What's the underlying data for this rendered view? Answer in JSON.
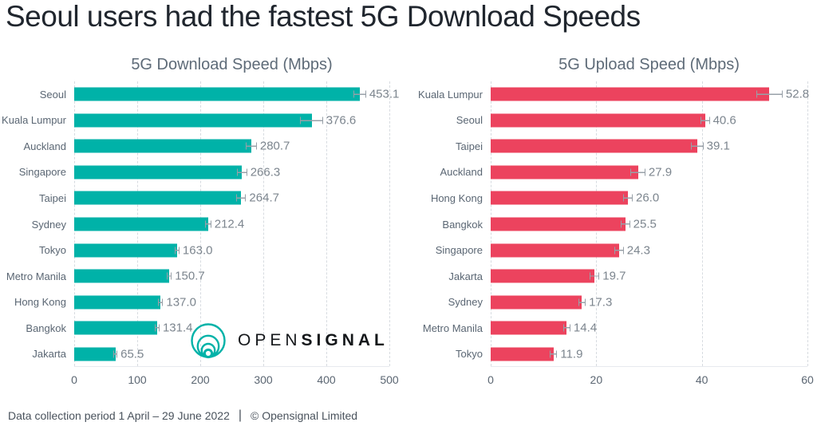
{
  "page_title": "Seoul users had the fastest 5G Download Speeds",
  "logo": {
    "name": "Opensignal",
    "text_light": "OPEN",
    "text_bold": "SIGNAL",
    "mark_color": "#00b2a8"
  },
  "footer": {
    "period": "Data collection period 1 April – 29 June 2022",
    "separator": "|",
    "copyright": "© Opensignal Limited"
  },
  "colors": {
    "download_bar": "#00b2a8",
    "upload_bar": "#ec435e",
    "gridline": "#d7dbe0",
    "axis_text": "#5b6672",
    "value_text": "#7c858e",
    "chart_title_text": "#5e6b78",
    "title_text": "#20262e",
    "error_bar": "#98a0a8"
  },
  "chart_data": [
    {
      "type": "bar",
      "orientation": "horizontal",
      "title": "5G Download Speed (Mbps)",
      "categories": [
        "Seoul",
        "Kuala Lumpur",
        "Auckland",
        "Singapore",
        "Taipei",
        "Sydney",
        "Tokyo",
        "Metro Manila",
        "Hong Kong",
        "Bangkok",
        "Jakarta"
      ],
      "values": [
        453.1,
        376.6,
        280.7,
        266.3,
        264.7,
        212.4,
        163.0,
        150.7,
        137.0,
        131.4,
        65.5
      ],
      "ci_estimate": [
        10,
        18,
        9,
        8,
        8,
        5,
        4,
        4,
        4,
        4,
        3
      ],
      "xlim": [
        0,
        500
      ],
      "xticks": [
        0,
        100,
        200,
        300,
        400,
        500
      ],
      "bar_color": "#00b2a8",
      "grid": true,
      "value_labels": true,
      "legend": "none"
    },
    {
      "type": "bar",
      "orientation": "horizontal",
      "title": "5G Upload Speed (Mbps)",
      "categories": [
        "Kuala Lumpur",
        "Seoul",
        "Taipei",
        "Auckland",
        "Hong Kong",
        "Bangkok",
        "Singapore",
        "Jakarta",
        "Sydney",
        "Metro Manila",
        "Tokyo"
      ],
      "values": [
        52.8,
        40.6,
        39.1,
        27.9,
        26.0,
        25.5,
        24.3,
        19.7,
        17.3,
        14.4,
        11.9
      ],
      "ci_estimate": [
        2.5,
        0.9,
        1.2,
        1.4,
        0.9,
        0.9,
        0.9,
        0.9,
        0.7,
        0.7,
        0.7
      ],
      "xlim": [
        0,
        60
      ],
      "xticks": [
        0,
        20,
        40,
        60
      ],
      "bar_color": "#ec435e",
      "grid": true,
      "value_labels": true,
      "legend": "none"
    }
  ]
}
